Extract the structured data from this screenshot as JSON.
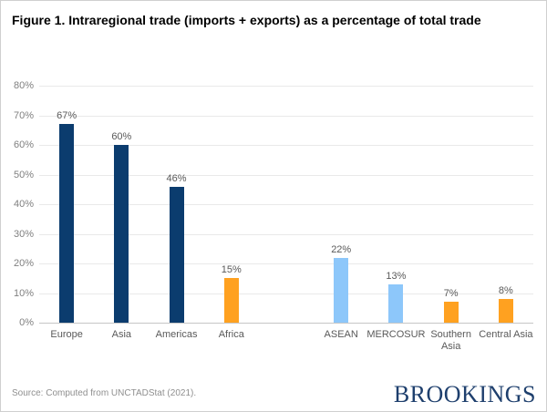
{
  "figure": {
    "title": "Figure 1. Intraregional trade (imports + exports) as a percentage of total trade",
    "source": "Source: Computed from UNCTADStat (2021).",
    "logo": "BROOKINGS"
  },
  "chart_data": {
    "type": "bar",
    "title": "Figure 1. Intraregional trade (imports + exports) as a percentage of total trade",
    "xlabel": "",
    "ylabel": "",
    "ylim": [
      0,
      80
    ],
    "grid": true,
    "legend": "none",
    "y_ticks": [
      {
        "value": 0,
        "label": "0%"
      },
      {
        "value": 10,
        "label": "10%"
      },
      {
        "value": 20,
        "label": "20%"
      },
      {
        "value": 30,
        "label": "30%"
      },
      {
        "value": 40,
        "label": "40%"
      },
      {
        "value": 50,
        "label": "50%"
      },
      {
        "value": 60,
        "label": "60%"
      },
      {
        "value": 70,
        "label": "70%"
      },
      {
        "value": 80,
        "label": "80%"
      }
    ],
    "bars": [
      {
        "label": "Europe",
        "value": 67,
        "display": "67%",
        "color": "navy"
      },
      {
        "label": "Asia",
        "value": 60,
        "display": "60%",
        "color": "navy"
      },
      {
        "label": "Americas",
        "value": 46,
        "display": "46%",
        "color": "navy"
      },
      {
        "label": "Africa",
        "value": 15,
        "display": "15%",
        "color": "orange"
      },
      {
        "label": "",
        "value": null,
        "display": "",
        "color": null,
        "spacer": true
      },
      {
        "label": "ASEAN",
        "value": 22,
        "display": "22%",
        "color": "light_blue"
      },
      {
        "label": "MERCOSUR",
        "value": 13,
        "display": "13%",
        "color": "light_blue"
      },
      {
        "label": "Southern Asia",
        "value": 7,
        "display": "7%",
        "color": "orange",
        "wrap": true
      },
      {
        "label": "Central Asia",
        "value": 8,
        "display": "8%",
        "color": "orange"
      }
    ]
  },
  "colors": {
    "navy": "#0b3c6e",
    "orange": "#ffa120",
    "light_blue": "#8dc7fa",
    "title_text": "#000000",
    "axis_text": "#808080",
    "label_text": "#595959",
    "gridline": "#e9e9e9",
    "axis_line": "#c6c6c6",
    "source_text": "#8f8f8f",
    "logo_navy": "#1e3f6d"
  }
}
